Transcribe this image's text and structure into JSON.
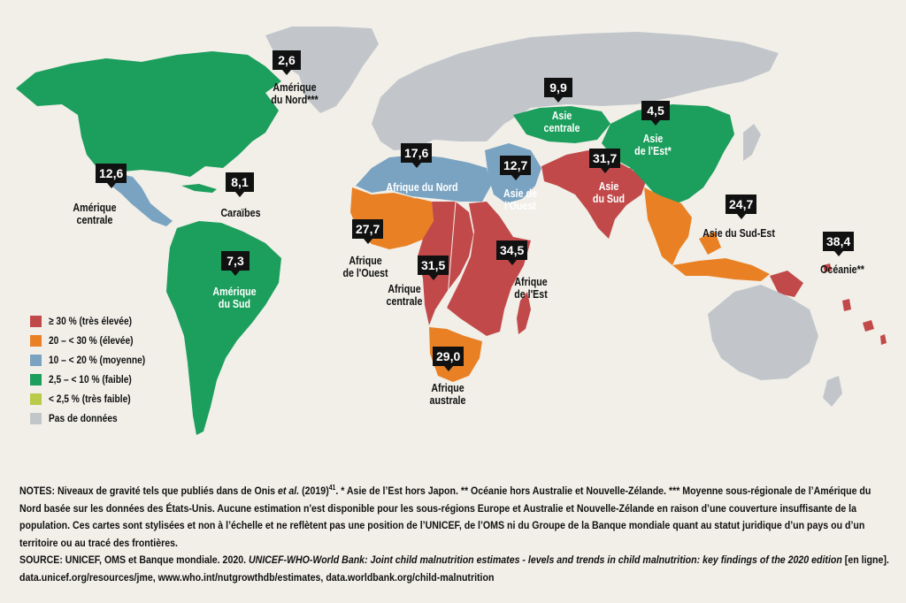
{
  "colors": {
    "very_high": "#c2494a",
    "high": "#e98124",
    "medium": "#7aa3c2",
    "low": "#1c9e5c",
    "very_low": "#b8cb4a",
    "no_data": "#c2c6cb",
    "background": "#f1efe8"
  },
  "regions": [
    {
      "id": "amerique-du-nord",
      "value": "2,6",
      "label": "Amérique\ndu Nord***",
      "category": "low"
    },
    {
      "id": "amerique-centrale",
      "value": "12,6",
      "label": "Amérique\ncentrale",
      "category": "medium"
    },
    {
      "id": "caraibes",
      "value": "8,1",
      "label": "Caraïbes",
      "category": "low"
    },
    {
      "id": "amerique-du-sud",
      "value": "7,3",
      "label": "Amérique\ndu Sud",
      "category": "low"
    },
    {
      "id": "afrique-du-nord",
      "value": "17,6",
      "label": "Afrique du Nord",
      "category": "medium"
    },
    {
      "id": "afrique-de-louest",
      "value": "27,7",
      "label": "Afrique\nde l'Ouest",
      "category": "high"
    },
    {
      "id": "afrique-centrale",
      "value": "31,5",
      "label": "Afrique\ncentrale",
      "category": "very_high"
    },
    {
      "id": "afrique-de-lest",
      "value": "34,5",
      "label": "Afrique\nde l'Est",
      "category": "very_high"
    },
    {
      "id": "afrique-australe",
      "value": "29,0",
      "label": "Afrique\naustrale",
      "category": "high"
    },
    {
      "id": "asie-de-louest",
      "value": "12,7",
      "label": "Asie de\nl'Ouest",
      "category": "medium"
    },
    {
      "id": "asie-centrale",
      "value": "9,9",
      "label": "Asie\ncentrale",
      "category": "low"
    },
    {
      "id": "asie-du-sud",
      "value": "31,7",
      "label": "Asie\ndu Sud",
      "category": "very_high"
    },
    {
      "id": "asie-de-lest",
      "value": "4,5",
      "label": "Asie\nde l'Est*",
      "category": "low"
    },
    {
      "id": "asie-du-sud-est",
      "value": "24,7",
      "label": "Asie du Sud-Est",
      "category": "high"
    },
    {
      "id": "oceanie",
      "value": "38,4",
      "label": "Océanie**",
      "category": "very_high"
    }
  ],
  "legend": [
    {
      "label": "≥ 30 % (très élevée)",
      "category": "very_high"
    },
    {
      "label": "20 – < 30 % (élevée)",
      "category": "high"
    },
    {
      "label": "10 – < 20 % (moyenne)",
      "category": "medium"
    },
    {
      "label": "2,5 – < 10 % (faible)",
      "category": "low"
    },
    {
      "label": "< 2,5 % (très faible)",
      "category": "very_low"
    },
    {
      "label": "Pas de données",
      "category": "no_data"
    }
  ],
  "notes": {
    "lead": "NOTES: Niveaux de gravité tels que publiés dans de Onis ",
    "lead_italic": "et al.",
    "after_italic": " (2019)",
    "superscript": "41",
    "body": ". * Asie de l’Est hors Japon. ** Océanie hors Australie et Nouvelle-Zélande. *** Moyenne sous-régionale de l’Amérique du Nord basée sur les données des États-Unis. Aucune estimation n'est disponible pour les sous-régions Europe et Australie et Nouvelle-Zélande en raison d’une couverture insuffisante de la population. Ces cartes sont stylisées et non à l’échelle et ne reflètent pas une position de l’UNICEF, de l’OMS ni du Groupe de la Banque mondiale quant au statut juridique d’un pays ou d’un territoire ou au tracé des frontières."
  },
  "source": {
    "prefix": "SOURCE: UNICEF, OMS et Banque mondiale. 2020. ",
    "title_italic": "UNICEF-WHO-World Bank: Joint child malnutrition estimates - levels and trends in child malnutrition: key findings of the 2020 edition",
    "suffix": " [en ligne]. data.unicef.org/resources/jme, www.who.int/nutgrowthdb/estimates, data.worldbank.org/child-malnutrition"
  }
}
